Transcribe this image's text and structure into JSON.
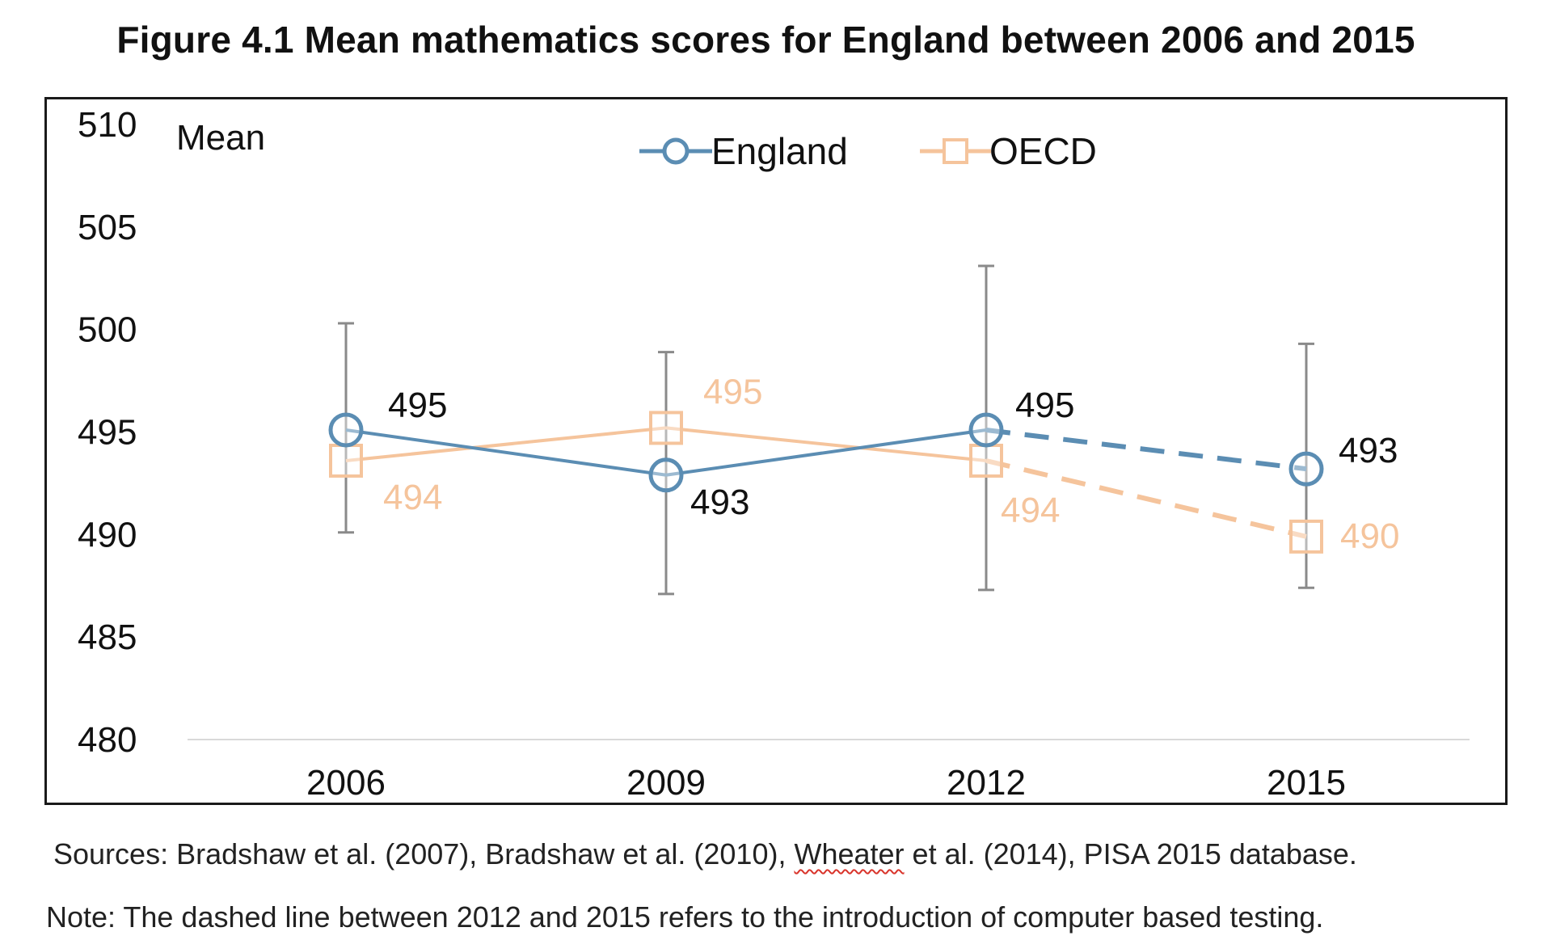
{
  "figure_title": "Figure 4.1 Mean mathematics scores for England between 2006 and 2015",
  "sources": {
    "prefix": "Sources: Bradshaw et al. (2007), Bradshaw et al. (2010), ",
    "flagged_word": "Wheater",
    "suffix": " et al. (2014), PISA 2015 database."
  },
  "note": "Note: The dashed line between 2012 and 2015 refers to the introduction of computer based testing.",
  "colors": {
    "england": "#5b8db3",
    "oecd": "#f5c49c",
    "error_bar": "#8a8a8a",
    "axis": "#d9d9d9",
    "text": "#111111",
    "spellcheck": "#d9342b"
  },
  "chart_data": {
    "type": "line",
    "title": "Figure 4.1 Mean mathematics scores for England between 2006 and 2015",
    "xlabel": "",
    "ylabel": "Mean",
    "ylim": [
      480,
      510
    ],
    "yticks": [
      510,
      505,
      500,
      495,
      490,
      485,
      480
    ],
    "grid": false,
    "legend_position": "top-center",
    "categories": [
      "2006",
      "2009",
      "2012",
      "2015"
    ],
    "dashed_after": "2012",
    "series": [
      {
        "name": "England",
        "marker": "circle",
        "color": "#5b8db3",
        "values": [
          495.1,
          492.9,
          495.1,
          493.2
        ],
        "labels": [
          "495",
          "493",
          "495",
          "493"
        ],
        "error_low": [
          490.1,
          487.1,
          487.3,
          487.4
        ],
        "error_high": [
          500.3,
          498.9,
          503.1,
          499.3
        ]
      },
      {
        "name": "OECD",
        "marker": "square",
        "color": "#f5c49c",
        "values": [
          493.6,
          495.2,
          493.6,
          489.9
        ],
        "labels": [
          "494",
          "495",
          "494",
          "490"
        ]
      }
    ]
  }
}
